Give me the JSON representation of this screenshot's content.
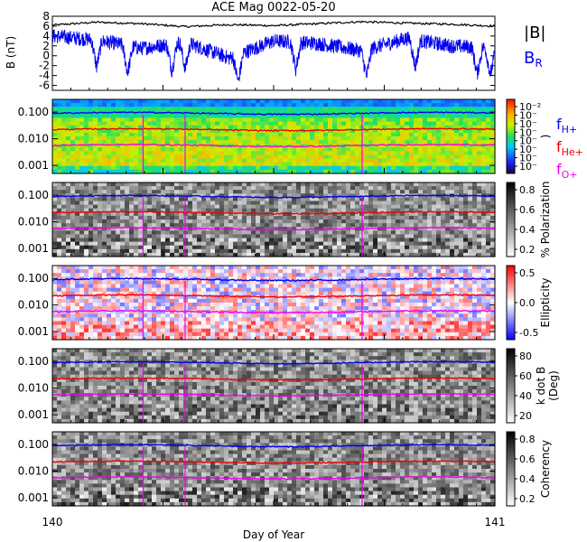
{
  "title": "ACE Mag 0022-05-20",
  "xlabel": "Day of Year",
  "x_ticks": [
    "140",
    "141"
  ],
  "colors": {
    "B_total": "#000000",
    "B_R": "#0000ee",
    "f_H": "#0000ee",
    "f_He": "#ee0000",
    "f_O": "#ee00ee"
  },
  "chart_data": [
    {
      "type": "line",
      "panel": "magnetic-field",
      "ylabel": "B (nT)",
      "yticks": [
        "8",
        "6",
        "4",
        "2",
        "0",
        "-2",
        "-4",
        "-6"
      ],
      "ylim": [
        -7,
        8
      ],
      "xlim": [
        140,
        141
      ],
      "legend": [
        "|B|",
        "B_R"
      ],
      "legend_text": {
        "bmag": "|B|",
        "br_main": "B",
        "br_sub": "R"
      },
      "series": [
        {
          "name": "|B|",
          "x": [
            140.0,
            140.1,
            140.2,
            140.3,
            140.4,
            140.5,
            140.6,
            140.7,
            140.8,
            140.9,
            141.0
          ],
          "values": [
            6.2,
            6.8,
            6.5,
            5.9,
            6.3,
            6.1,
            6.5,
            6.9,
            6.6,
            6.4,
            6.0
          ]
        },
        {
          "name": "B_R",
          "x": [
            140.0,
            140.1,
            140.2,
            140.3,
            140.4,
            140.5,
            140.6,
            140.7,
            140.8,
            140.9,
            141.0
          ],
          "values": [
            4.0,
            3.2,
            1.5,
            2.8,
            -0.5,
            3.0,
            2.5,
            1.0,
            3.5,
            2.0,
            1.5
          ]
        }
      ]
    },
    {
      "type": "heatmap",
      "panel": "power-spectrum",
      "yticks": [
        "0.100",
        "0.010",
        "0.001"
      ],
      "colorbar_ticks": [
        "10⁻²",
        "10⁻",
        "10⁻",
        "10⁻",
        "10⁻",
        "10⁻",
        "10⁻",
        "10⁻"
      ],
      "colorbar_label": ")",
      "legend_text": {
        "fh_main": "f",
        "fh_sub": "H+",
        "fhe_main": "f",
        "fhe_sub": "He+",
        "fo_main": "f",
        "fo_sub": "O+"
      }
    },
    {
      "type": "heatmap",
      "panel": "polarization",
      "yticks": [
        "0.100",
        "0.010",
        "0.001"
      ],
      "colorbar_ticks": [
        "0.8",
        "0.6",
        "0.4",
        "0.2"
      ],
      "colorbar_label": "% Polarization"
    },
    {
      "type": "heatmap",
      "panel": "ellipticity",
      "yticks": [
        "0.100",
        "0.010",
        "0.001"
      ],
      "colorbar_ticks": [
        "0.5",
        "0.0",
        "-0.5"
      ],
      "colorbar_label": "Ellipticity"
    },
    {
      "type": "heatmap",
      "panel": "k-dot-b",
      "yticks": [
        "0.100",
        "0.010",
        "0.001"
      ],
      "colorbar_ticks": [
        "80",
        "60",
        "40",
        "20"
      ],
      "colorbar_label": "k dot B",
      "colorbar_label2": "(Deg)"
    },
    {
      "type": "heatmap",
      "panel": "coherency",
      "yticks": [
        "0.100",
        "0.010",
        "0.001"
      ],
      "colorbar_ticks": [
        "0.8",
        "0.6",
        "0.4",
        "0.2"
      ],
      "colorbar_label": "Coherency"
    }
  ],
  "gyro_lines": {
    "f_H": 0.09,
    "f_He": 0.022,
    "f_O": 0.0056
  }
}
